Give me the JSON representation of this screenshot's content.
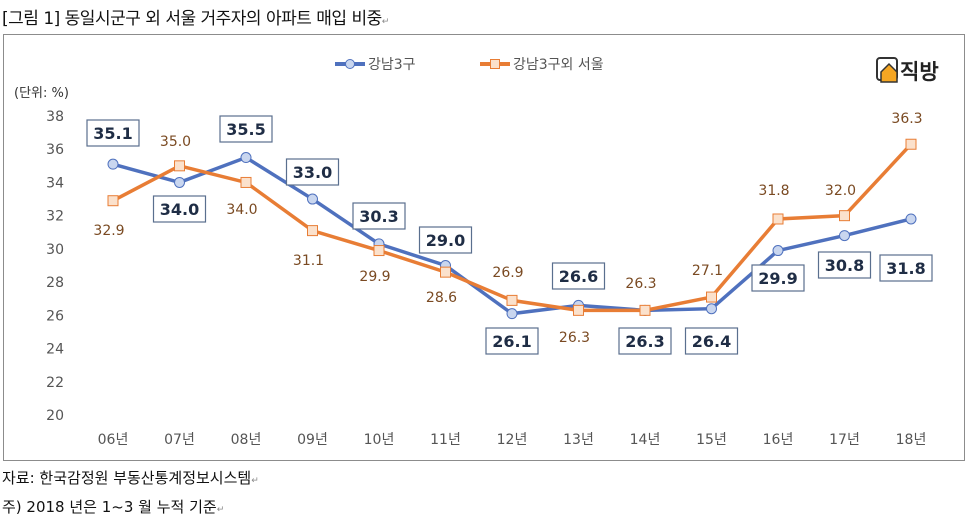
{
  "title": "[그림 1] 동일시군구 외 서울 거주자의 아파트 매입 비중",
  "brand": "직방",
  "footnotes": [
    "자료: 한국감정원 부동산통계정보시스템",
    "주) 2018 년은 1~3 월 누적 기준"
  ],
  "chart_data": {
    "type": "line",
    "title": "동일시군구 외 서울 거주자의 아파트 매입 비중",
    "unit_label": "(단위: %)",
    "categories": [
      "06년",
      "07년",
      "08년",
      "09년",
      "10년",
      "11년",
      "12년",
      "13년",
      "14년",
      "15년",
      "16년",
      "17년",
      "18년"
    ],
    "yticks": [
      "20",
      "22",
      "24",
      "26",
      "28",
      "30",
      "32",
      "34",
      "36",
      "38"
    ],
    "ylim": [
      20,
      38
    ],
    "grid": false,
    "legend": "top-center",
    "series": [
      {
        "name": "강남3구",
        "color": "#4f71be",
        "values": [
          35.1,
          34.0,
          35.5,
          33.0,
          30.3,
          29.0,
          26.1,
          26.6,
          26.3,
          26.4,
          29.9,
          30.8,
          31.8
        ],
        "labels": [
          "35.1",
          "34.0",
          "35.5",
          "33.0",
          "30.3",
          "29.0",
          "26.1",
          "26.6",
          "26.3",
          "26.4",
          "29.9",
          "30.8",
          "31.8"
        ]
      },
      {
        "name": "강남3구외 서울",
        "color": "#e87d35",
        "values": [
          32.9,
          35.0,
          34.0,
          31.1,
          29.9,
          28.6,
          26.9,
          26.3,
          26.3,
          27.1,
          31.8,
          32.0,
          36.3
        ],
        "labels": [
          "32.9",
          "35.0",
          "34.0",
          "31.1",
          "29.9",
          "28.6",
          "26.9",
          "26.3",
          "26.3",
          "27.1",
          "31.8",
          "32.0",
          "36.3"
        ]
      }
    ]
  }
}
